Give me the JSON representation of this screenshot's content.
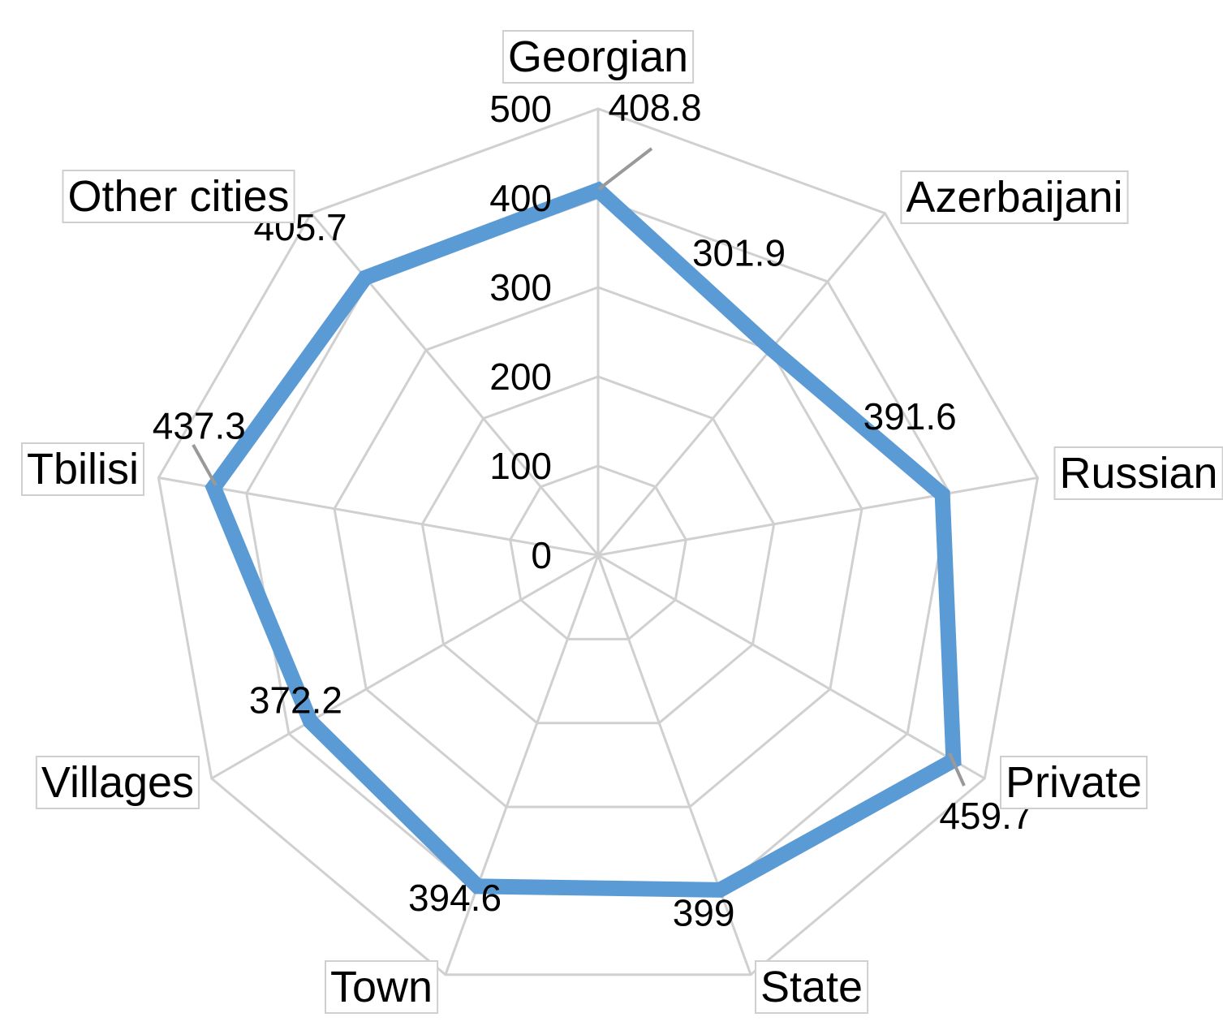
{
  "chart_data": {
    "type": "radar",
    "title": "",
    "categories": [
      "Georgian",
      "Azerbaijani",
      "Russian",
      "Private",
      "State",
      "Town",
      "Villages",
      "Tbilisi",
      "Other cities"
    ],
    "series": [
      {
        "values": [
          408.8,
          301.9,
          391.6,
          459.7,
          399,
          394.6,
          372.2,
          437.3,
          405.7
        ]
      }
    ],
    "data_labels": [
      "408.8",
      "301.9",
      "391.6",
      "459.7",
      "399",
      "394.6",
      "372.2",
      "437.3",
      "405.7"
    ],
    "r_ticks": [
      "0",
      "100",
      "200",
      "300",
      "400",
      "500"
    ],
    "r_tick_values": [
      0,
      100,
      200,
      300,
      400,
      500
    ],
    "rlim": [
      0,
      500
    ],
    "grid": true,
    "legend": "none",
    "colors": {
      "series": "#5b9bd5",
      "grid": "#d0d0d0",
      "leader": "#999999"
    }
  }
}
